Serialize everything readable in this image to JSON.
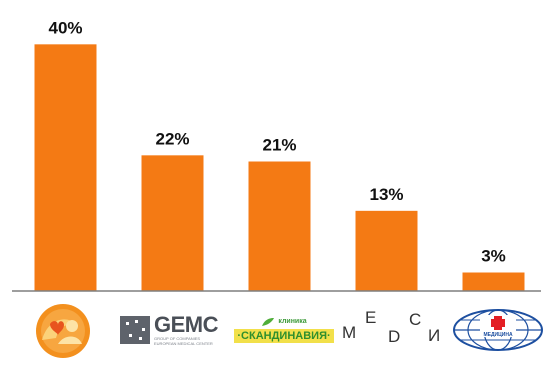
{
  "chart_data": {
    "type": "bar",
    "categories": [
      "Мать и дитя",
      "GEMC",
      "Клиника Скандинавия",
      "Медси",
      "Медицина"
    ],
    "values": [
      40,
      22,
      21,
      13,
      3
    ],
    "value_labels": [
      "40%",
      "22%",
      "21%",
      "13%",
      "3%"
    ],
    "ylim": [
      0,
      42
    ],
    "grid": false,
    "legend": "none",
    "bar_color": "#f47a14",
    "axis_color": "#7f7f7f"
  },
  "logos": {
    "gemc": "GEMC",
    "gemc_sub": "GROUP OF COMPANIES EUROPEAN MEDICAL CENTER",
    "scandinavia_top": "клиника",
    "scandinavia_main": "·СКАНДИНАВИЯ·",
    "medsi_letters": [
      "M",
      "E",
      "D",
      "C",
      "И"
    ],
    "medicina_text": "МЕДИЦИНА"
  }
}
